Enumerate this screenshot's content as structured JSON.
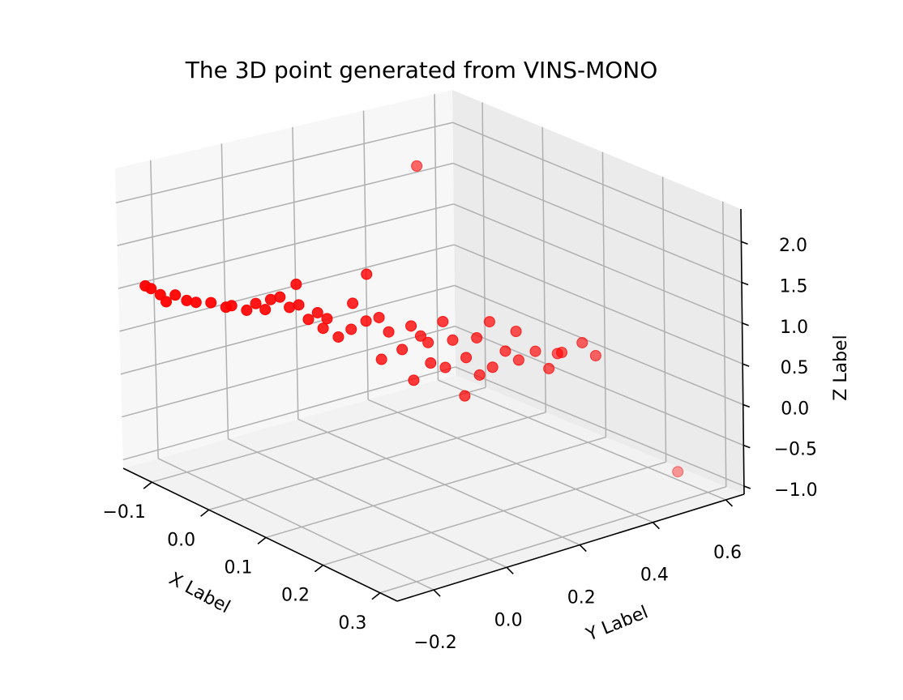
{
  "chart_data": {
    "type": "scatter",
    "projection": "3d",
    "title": "The 3D point generated from VINS-MONO",
    "xlabel": "X Label",
    "ylabel": "Y Label",
    "zlabel": "Z Label",
    "xlim": [
      -0.15,
      0.33
    ],
    "ylim": [
      -0.3,
      0.65
    ],
    "zlim": [
      -1.1,
      2.4
    ],
    "xticks": [
      "−0.1",
      "0.0",
      "0.1",
      "0.2",
      "0.3"
    ],
    "yticks": [
      "−0.2",
      "0.0",
      "0.2",
      "0.4",
      "0.6"
    ],
    "zticks": [
      "−1.0",
      "−0.5",
      "0.0",
      "0.5",
      "1.0",
      "1.5",
      "2.0"
    ],
    "grid": true,
    "marker_color": "#ff0000",
    "pane_color": "#f2f2f2",
    "grid_color": "#b0b0b0",
    "points": [
      {
        "x": -0.14,
        "y": -0.24,
        "z": 1.0
      },
      {
        "x": -0.13,
        "y": -0.24,
        "z": 1.0
      },
      {
        "x": -0.12,
        "y": -0.23,
        "z": 0.95
      },
      {
        "x": -0.11,
        "y": -0.23,
        "z": 0.9
      },
      {
        "x": -0.1,
        "y": -0.22,
        "z": 1.0
      },
      {
        "x": -0.08,
        "y": -0.22,
        "z": 1.0
      },
      {
        "x": -0.07,
        "y": -0.21,
        "z": 1.0
      },
      {
        "x": -0.05,
        "y": -0.2,
        "z": 1.05
      },
      {
        "x": -0.03,
        "y": -0.19,
        "z": 1.05
      },
      {
        "x": -0.02,
        "y": -0.19,
        "z": 1.1
      },
      {
        "x": 0.0,
        "y": -0.18,
        "z": 1.1
      },
      {
        "x": 0.01,
        "y": -0.17,
        "z": 1.2
      },
      {
        "x": 0.02,
        "y": -0.16,
        "z": 1.15
      },
      {
        "x": 0.03,
        "y": -0.16,
        "z": 1.3
      },
      {
        "x": 0.04,
        "y": -0.15,
        "z": 1.35
      },
      {
        "x": 0.05,
        "y": -0.14,
        "z": 1.25
      },
      {
        "x": 0.06,
        "y": -0.13,
        "z": 1.3
      },
      {
        "x": 0.05,
        "y": -0.12,
        "z": 1.5
      },
      {
        "x": 0.07,
        "y": -0.12,
        "z": 1.15
      },
      {
        "x": 0.08,
        "y": -0.11,
        "z": 1.25
      },
      {
        "x": 0.09,
        "y": -0.1,
        "z": 1.2
      },
      {
        "x": 0.07,
        "y": -0.08,
        "z": 1.0
      },
      {
        "x": 0.09,
        "y": -0.07,
        "z": 0.95
      },
      {
        "x": 0.11,
        "y": -0.06,
        "z": 1.4
      },
      {
        "x": 0.1,
        "y": -0.05,
        "z": 1.05
      },
      {
        "x": 0.12,
        "y": -0.04,
        "z": 1.2
      },
      {
        "x": 0.11,
        "y": -0.02,
        "z": 1.7
      },
      {
        "x": 0.13,
        "y": -0.02,
        "z": 1.25
      },
      {
        "x": 0.14,
        "y": -0.01,
        "z": 1.1
      },
      {
        "x": 0.12,
        "y": 0.0,
        "z": 0.7
      },
      {
        "x": 0.15,
        "y": 0.01,
        "z": 0.9
      },
      {
        "x": 0.16,
        "y": 0.02,
        "z": 1.2
      },
      {
        "x": 0.17,
        "y": 0.03,
        "z": 1.1
      },
      {
        "x": 0.15,
        "y": 0.04,
        "z": 0.5
      },
      {
        "x": 0.18,
        "y": 0.04,
        "z": 0.8
      },
      {
        "x": 0.17,
        "y": 0.05,
        "z": 1.0
      },
      {
        "x": 0.19,
        "y": 0.06,
        "z": 1.3
      },
      {
        "x": 0.2,
        "y": 0.07,
        "z": 1.1
      },
      {
        "x": 0.18,
        "y": 0.08,
        "z": 0.7
      },
      {
        "x": 0.21,
        "y": 0.09,
        "z": 0.9
      },
      {
        "x": 0.2,
        "y": 0.1,
        "z": 0.4
      },
      {
        "x": 0.22,
        "y": 0.11,
        "z": 0.7
      },
      {
        "x": 0.21,
        "y": 0.12,
        "z": 1.1
      },
      {
        "x": 0.23,
        "y": 0.13,
        "z": 0.8
      },
      {
        "x": 0.22,
        "y": 0.14,
        "z": 1.3
      },
      {
        "x": 0.24,
        "y": 0.15,
        "z": 1.0
      },
      {
        "x": 0.25,
        "y": 0.17,
        "z": 0.9
      },
      {
        "x": 0.24,
        "y": 0.18,
        "z": 1.2
      },
      {
        "x": 0.26,
        "y": 0.2,
        "z": 1.0
      },
      {
        "x": 0.27,
        "y": 0.22,
        "z": 0.8
      },
      {
        "x": 0.28,
        "y": 0.24,
        "z": 1.0
      },
      {
        "x": 0.26,
        "y": 0.26,
        "z": 0.9
      },
      {
        "x": 0.29,
        "y": 0.28,
        "z": 1.1
      },
      {
        "x": 0.3,
        "y": 0.3,
        "z": 0.95
      },
      {
        "x": 0.0,
        "y": 0.3,
        "z": 2.3
      },
      {
        "x": 0.25,
        "y": 0.6,
        "z": -1.0
      }
    ]
  }
}
